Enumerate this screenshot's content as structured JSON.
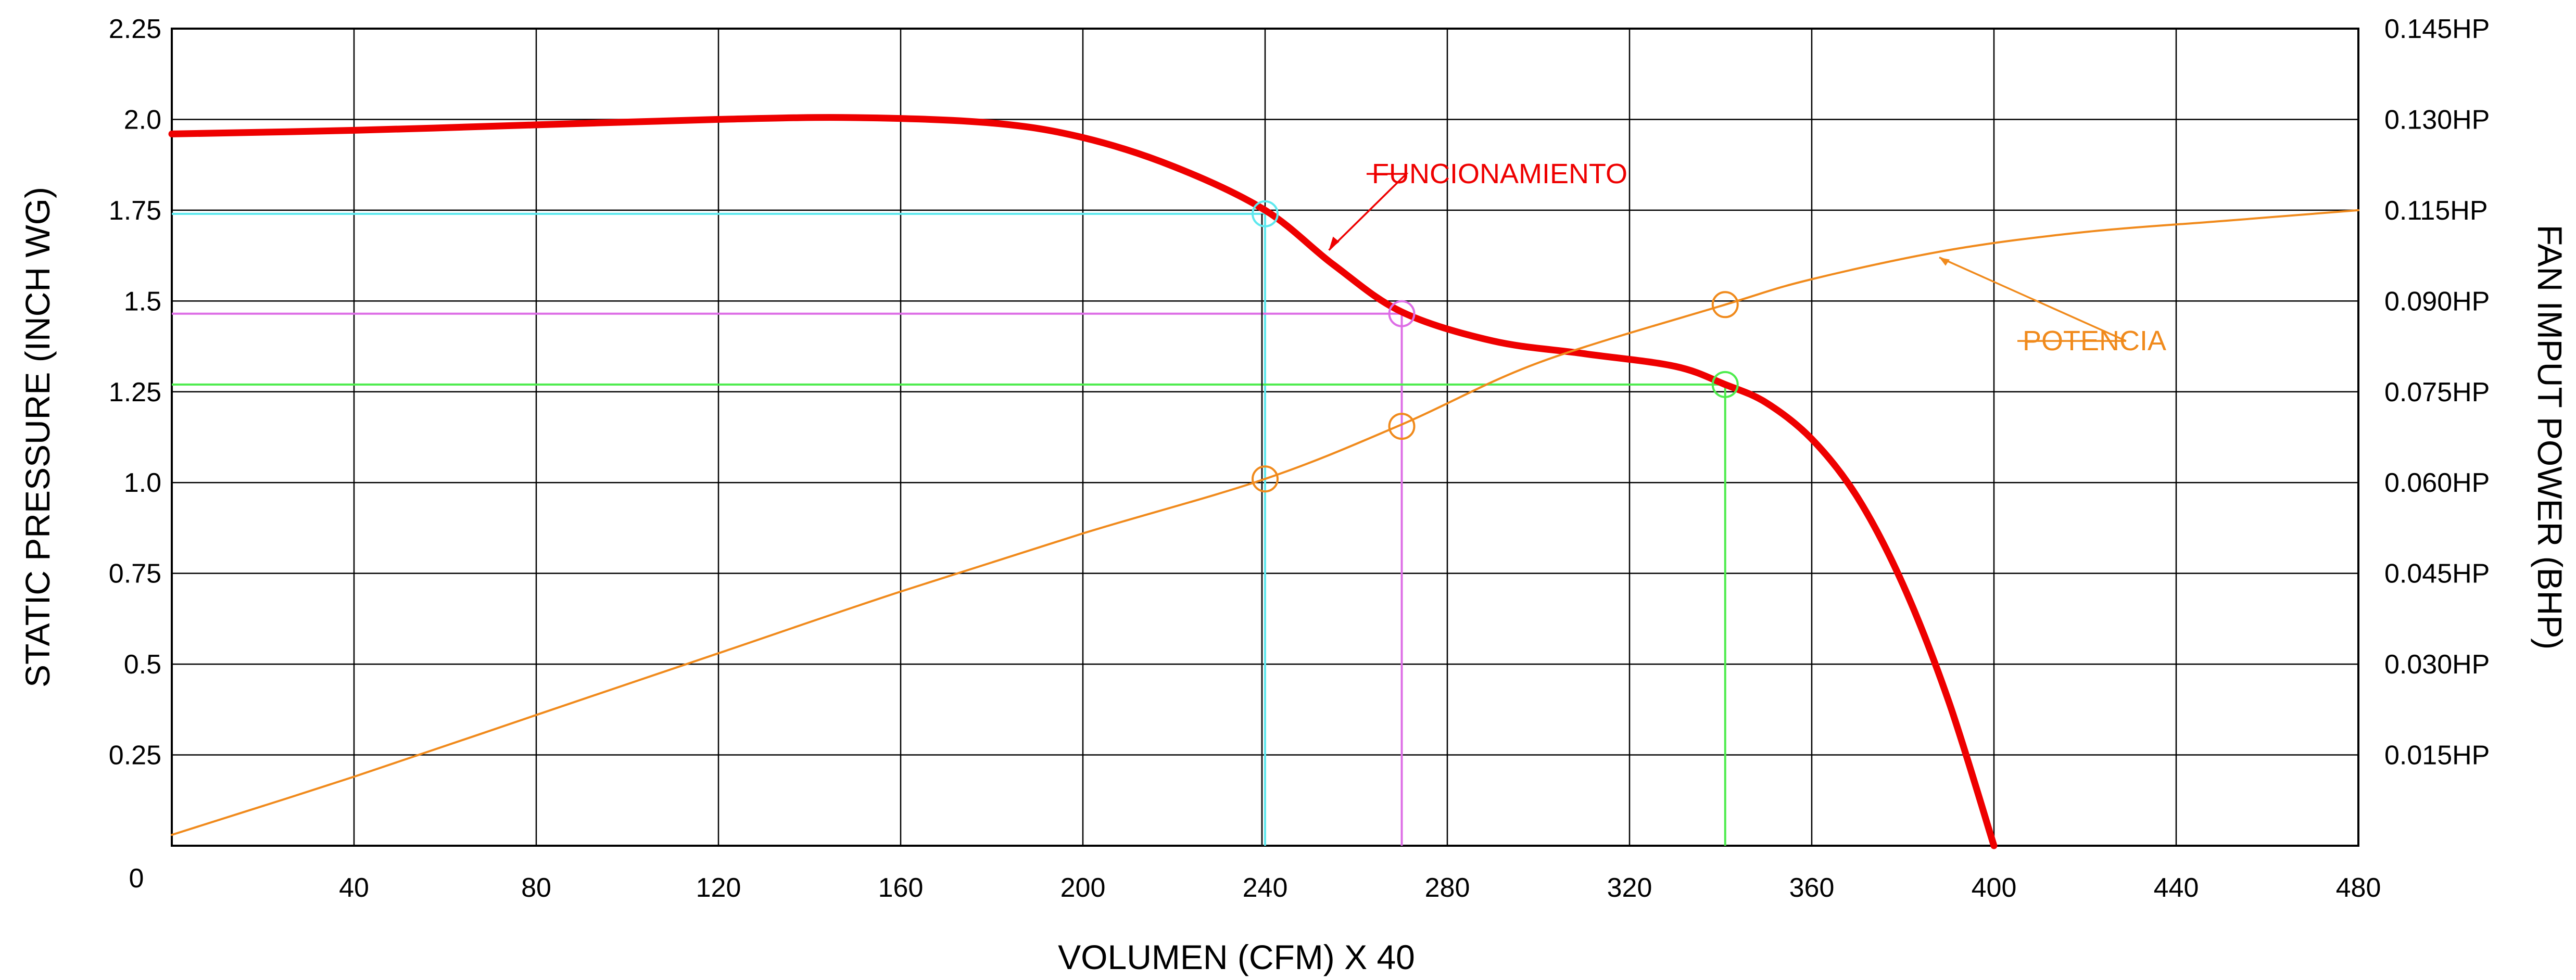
{
  "chart_data": {
    "type": "line",
    "title": "",
    "xlabel": "VOLUMEN (CFM) X 40",
    "ylabel_left": "STATIC PRESSURE (INCH WG)",
    "ylabel_right": "FAN IMPUT POWER (BHP)",
    "xlim": [
      0,
      480
    ],
    "ylim_left": [
      0,
      2.25
    ],
    "ylim_right": [
      0,
      0.145
    ],
    "grid": true,
    "x_ticks": [
      "40",
      "80",
      "120",
      "160",
      "200",
      "240",
      "280",
      "320",
      "360",
      "400",
      "440",
      "480"
    ],
    "x_tick_values": [
      40,
      80,
      120,
      160,
      200,
      240,
      280,
      320,
      360,
      400,
      440,
      480
    ],
    "origin_label": "0",
    "y_ticks_left": [
      "0.25",
      "0.5",
      "0.75",
      "1.0",
      "1.25",
      "1.5",
      "1.75",
      "2.0",
      "2.25"
    ],
    "y_tick_values_left": [
      0.25,
      0.5,
      0.75,
      1.0,
      1.25,
      1.5,
      1.75,
      2.0,
      2.25
    ],
    "y_ticks_right": [
      "0.015HP",
      "0.030HP",
      "0.045HP",
      "0.060HP",
      "0.075HP",
      "0.090HP",
      "0.115HP",
      "0.130HP",
      "0.145HP"
    ],
    "series": [
      {
        "name": "FUNCIONAMIENTO",
        "axis": "left",
        "color": "#ee0000",
        "x": [
          0,
          40,
          80,
          120,
          150,
          180,
          200,
          220,
          240,
          255,
          270,
          290,
          310,
          330,
          341,
          350,
          360,
          370,
          380,
          390,
          400
        ],
        "y": [
          1.96,
          1.97,
          1.985,
          2.0,
          2.005,
          1.99,
          1.95,
          1.87,
          1.75,
          1.6,
          1.47,
          1.39,
          1.355,
          1.32,
          1.27,
          1.22,
          1.12,
          0.96,
          0.72,
          0.4,
          0.0
        ]
      },
      {
        "name": "POTENCIA",
        "axis": "right_as_left_scale",
        "color": "#f08a1c",
        "x": [
          0,
          40,
          80,
          120,
          160,
          200,
          240,
          270,
          300,
          341,
          360,
          390,
          420,
          450,
          480
        ],
        "y": [
          0.03,
          0.19,
          0.36,
          0.53,
          0.7,
          0.86,
          1.01,
          1.16,
          1.33,
          1.49,
          1.56,
          1.64,
          1.69,
          1.72,
          1.75
        ]
      }
    ],
    "operating_points": [
      {
        "x": 240,
        "y": 1.74,
        "color": "#5ee8ee",
        "power_y": 1.01
      },
      {
        "x": 270,
        "y": 1.465,
        "color": "#dd6ee6",
        "power_y": 1.155
      },
      {
        "x": 341,
        "y": 1.27,
        "color": "#4eec4e",
        "power_y": 1.49
      }
    ],
    "callouts": [
      {
        "text": "FUNCIONAMIENTO",
        "series": "FUNCIONAMIENTO"
      },
      {
        "text": "POTENCIA",
        "series": "POTENCIA"
      }
    ]
  }
}
